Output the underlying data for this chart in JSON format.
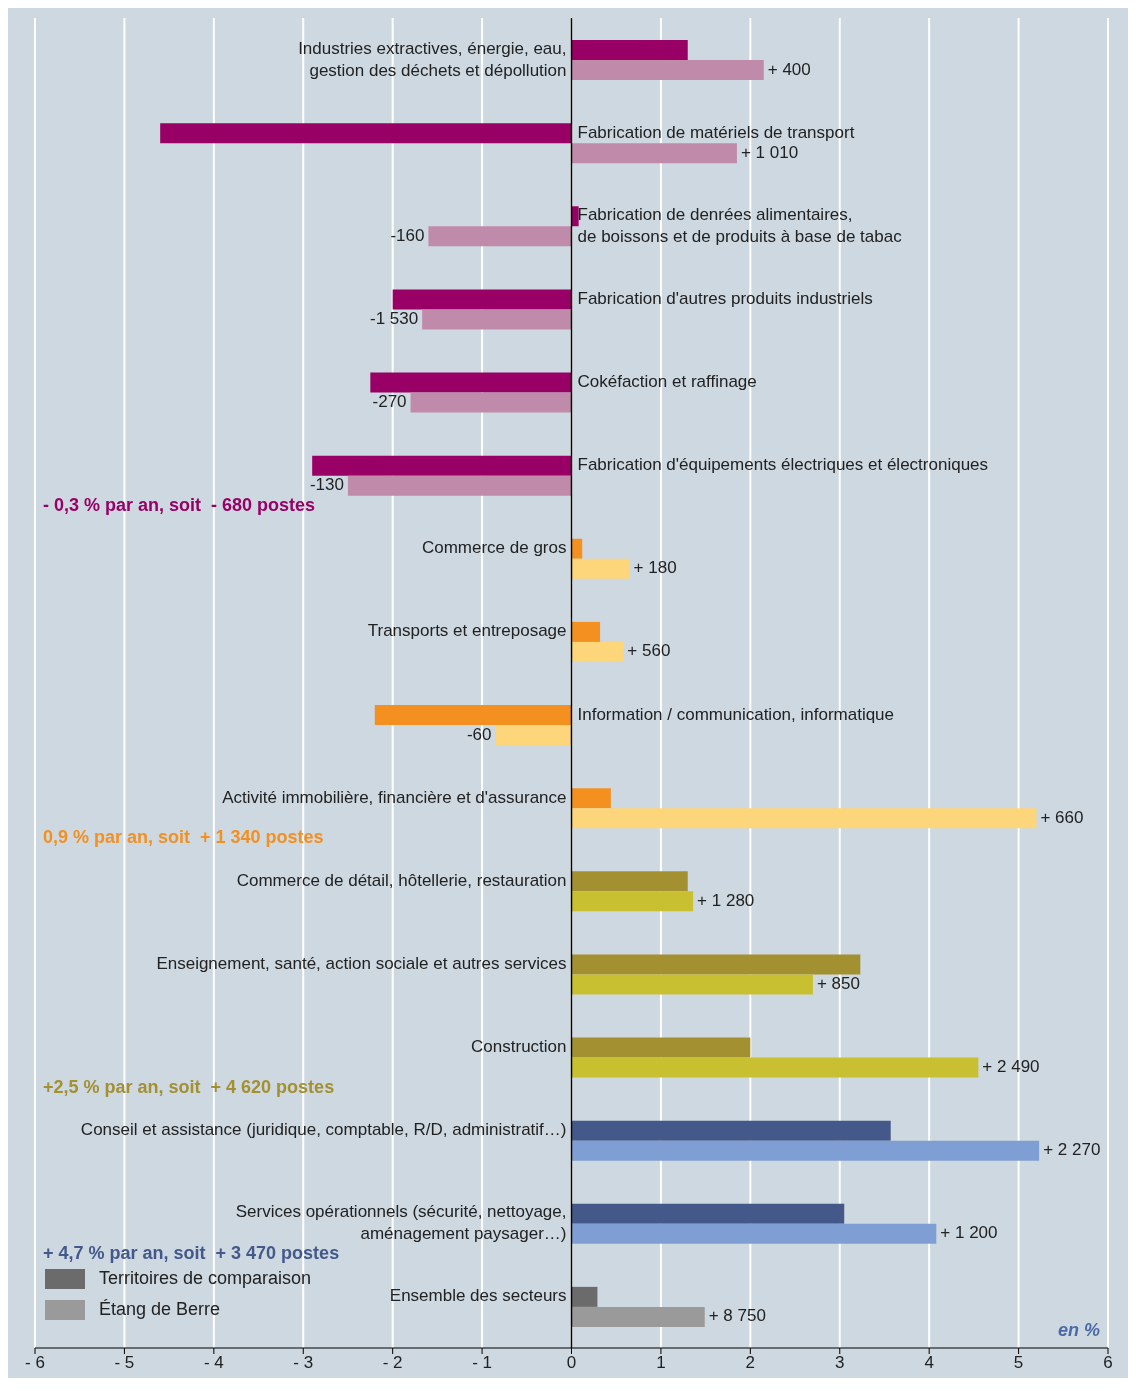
{
  "chart_data": {
    "type": "bar",
    "orientation": "horizontal",
    "categories": [
      "Industries extractives, énergie, eau,\ngestion des déchets et dépollution",
      "Fabrication de matériels de transport",
      "Fabrication de denrées alimentaires,\nde boissons et de produits à base de tabac",
      "Fabrication d'autres produits industriels",
      "Cokéfaction et raffinage",
      "Fabrication d'équipements électriques et électroniques",
      "Commerce de gros",
      "Transports et entreposage",
      "Information / communication, informatique",
      "Activité immobilière, financière et d'assurance",
      "Commerce de détail, hôtellerie, restauration",
      "Enseignement, santé, action sociale et autres services",
      "Construction",
      "Conseil et assistance (juridique, comptable, R/D, administratif…)",
      "Services opérationnels (sécurité, nettoyage,\naménagement paysager…)",
      "Ensemble des secteurs"
    ],
    "series": [
      {
        "name": "Territoires de comparaison",
        "color": "#6b6b6b",
        "colors": [
          "#990066",
          "#990066",
          "#990066",
          "#990066",
          "#990066",
          "#990066",
          "#f39020",
          "#f39020",
          "#f39020",
          "#f39020",
          "#a39030",
          "#a39030",
          "#a39030",
          "#44598a",
          "#44598a",
          "#6b6b6b"
        ],
        "values": [
          1.3,
          -4.6,
          0.08,
          -2.0,
          -2.25,
          -2.9,
          0.12,
          0.32,
          -2.2,
          0.44,
          1.3,
          3.23,
          2.0,
          3.57,
          3.05,
          0.29
        ]
      },
      {
        "name": "Étang de Berre",
        "color": "#9a9a9a",
        "colors": [
          "#c08aaa",
          "#c08aaa",
          "#c08aaa",
          "#c08aaa",
          "#c08aaa",
          "#c08aaa",
          "#fdd57a",
          "#fdd57a",
          "#fdd57a",
          "#fdd57a",
          "#c8c030",
          "#c8c030",
          "#c8c030",
          "#7f9fd4",
          "#7f9fd4",
          "#9a9a9a"
        ],
        "values": [
          2.15,
          1.85,
          -1.6,
          -1.67,
          -1.8,
          -2.5,
          0.65,
          0.58,
          -0.85,
          5.2,
          1.36,
          2.7,
          4.55,
          5.23,
          4.08,
          1.49
        ]
      }
    ],
    "xlim": [
      -6,
      6
    ],
    "xticks": [
      {
        "value": -6,
        "label": "- 6"
      },
      {
        "value": -5,
        "label": "- 5"
      },
      {
        "value": -4,
        "label": "- 4"
      },
      {
        "value": -3,
        "label": "- 3"
      },
      {
        "value": -2,
        "label": "- 2"
      },
      {
        "value": -1,
        "label": "- 1"
      },
      0,
      1,
      2,
      3,
      4,
      5,
      6
    ],
    "grid": "x",
    "legend": "bottom left",
    "annotations": [
      "- 0,3 % par an, soit  - 680 postes",
      "0,9 % par an, soit  + 1 340 postes",
      "+2,5 % par an, soit  + 4 620 postes",
      "+ 4,7 % par an, soit  + 3 470 postes",
      "en %",
      "+ 400",
      "+ 1 010",
      "-160",
      "-1 530",
      "-270",
      "-130",
      "+ 180",
      "+ 560",
      "-60",
      "+ 660",
      "+ 1 280",
      "+ 850",
      "+ 2 490",
      "+ 2 270",
      "+ 1 200",
      "+ 8 750"
    ]
  }
}
